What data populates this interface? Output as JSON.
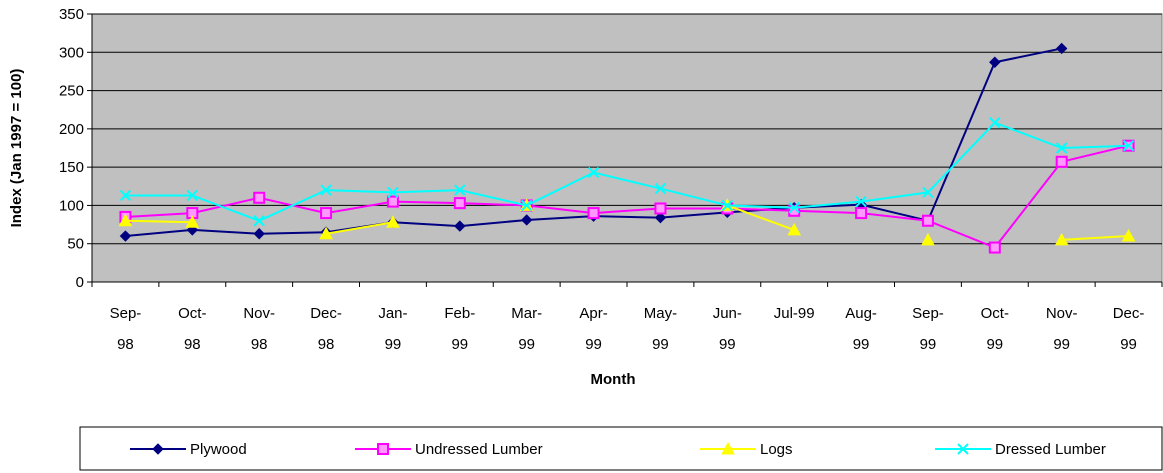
{
  "chart_data": {
    "type": "line",
    "y_label": "Index (Jan 1997 = 100)",
    "x_label": "Month",
    "categories": [
      "Sep-98",
      "Oct-98",
      "Nov-98",
      "Dec-98",
      "Jan-99",
      "Feb-99",
      "Mar-99",
      "Apr-99",
      "May-99",
      "Jun-99",
      "Jul-99",
      "Aug-99",
      "Sep-99",
      "Oct-99",
      "Nov-99",
      "Dec-99"
    ],
    "series": [
      {
        "name": "Plywood",
        "color": "#000080",
        "marker": "diamond",
        "values": [
          60,
          68,
          63,
          65,
          78,
          73,
          81,
          86,
          84,
          91,
          97,
          101,
          80,
          287,
          305,
          null
        ]
      },
      {
        "name": "Undressed Lumber",
        "color": "#ff00ff",
        "marker": "square",
        "values": [
          85,
          90,
          110,
          90,
          105,
          103,
          100,
          90,
          96,
          96,
          93,
          90,
          80,
          45,
          157,
          178
        ]
      },
      {
        "name": "Logs",
        "color": "#ffff00",
        "marker": "triangle",
        "values": [
          80,
          78,
          null,
          63,
          78,
          null,
          100,
          null,
          null,
          100,
          68,
          null,
          55,
          null,
          55,
          60
        ]
      },
      {
        "name": "Dressed Lumber",
        "color": "#00ffff",
        "marker": "x",
        "values": [
          113,
          113,
          80,
          120,
          117,
          120,
          100,
          143,
          122,
          100,
          97,
          105,
          117,
          208,
          175,
          178
        ]
      }
    ],
    "ylim": [
      0,
      350
    ],
    "yticks": [
      0,
      50,
      100,
      150,
      200,
      250,
      300,
      350
    ],
    "grid": true,
    "plot_background": "#c0c0c0",
    "legend": "bottom"
  }
}
